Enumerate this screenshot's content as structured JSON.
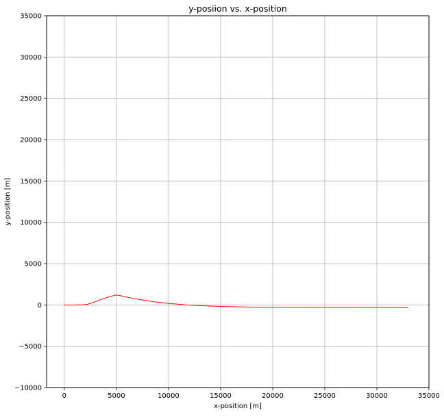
{
  "chart_data": {
    "type": "line",
    "title": "y-posiion vs. x-position",
    "xlabel": "x-position [m]",
    "ylabel": "y-position [m]",
    "xlim": [
      -1700,
      35000
    ],
    "ylim": [
      -10000,
      35000
    ],
    "xticks": [
      0,
      5000,
      10000,
      15000,
      20000,
      25000,
      30000,
      35000
    ],
    "xtick_labels": [
      "0",
      "5000",
      "10000",
      "15000",
      "20000",
      "25000",
      "30000",
      "35000"
    ],
    "yticks": [
      -10000,
      -5000,
      0,
      5000,
      10000,
      15000,
      20000,
      25000,
      30000,
      35000
    ],
    "ytick_labels": [
      "−10000",
      "−5000",
      "0",
      "5000",
      "10000",
      "15000",
      "20000",
      "25000",
      "30000",
      "35000"
    ],
    "grid": true,
    "series": [
      {
        "color": "#ff0000",
        "x": [
          0,
          1000,
          1800,
          2300,
          2800,
          3300,
          3800,
          4300,
          4700,
          5000,
          5300,
          5800,
          6500,
          7500,
          8500,
          10000,
          12000,
          14000,
          16000,
          18000,
          20000,
          23000,
          26000,
          30000,
          33000
        ],
        "y": [
          0,
          0,
          20,
          100,
          300,
          550,
          780,
          980,
          1120,
          1200,
          1150,
          1000,
          820,
          600,
          400,
          180,
          -20,
          -140,
          -210,
          -260,
          -280,
          -290,
          -300,
          -310,
          -320
        ]
      }
    ]
  }
}
